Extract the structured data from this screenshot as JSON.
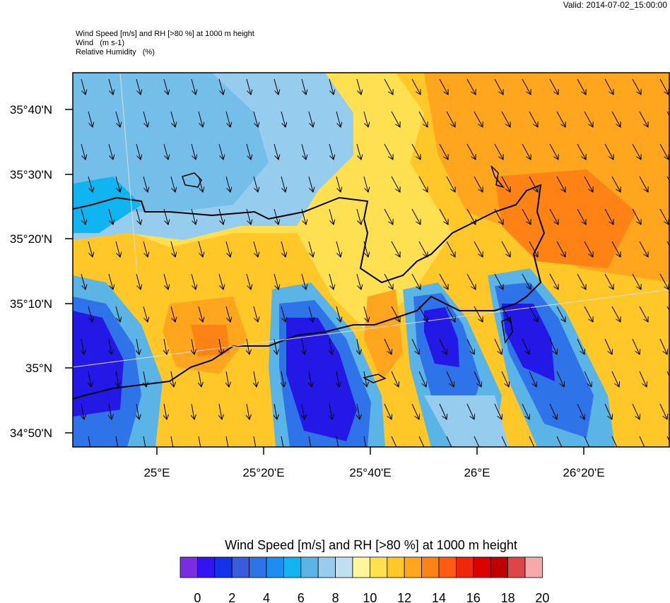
{
  "valid_time": "Valid: 2014-07-02_15:00:00",
  "header": {
    "line1": "Wind Speed [m/s] and RH [>80 %] at 1000 m height",
    "line2": "Wind   (m s-1)",
    "line3": "Relative Humidity   (%)"
  },
  "axes": {
    "lat_labels": [
      "35°40'N",
      "35°30'N",
      "35°20'N",
      "35°10'N",
      "35°N",
      "34°50'N"
    ],
    "lon_labels": [
      "25°E",
      "25°20'E",
      "25°40'E",
      "26°E",
      "26°20'E"
    ]
  },
  "legend": {
    "title": "Wind Speed [m/s] and RH [>80 %] at 1000 m height",
    "tick_labels": [
      "0",
      "2",
      "4",
      "6",
      "8",
      "10",
      "12",
      "14",
      "16",
      "18",
      "20"
    ],
    "colors": [
      "#7a2de0",
      "#3214f0",
      "#1432e8",
      "#3a5ae0",
      "#2e73e8",
      "#1e8cf0",
      "#10b4f0",
      "#5ab4e6",
      "#96cdee",
      "#c0e0f2",
      "#fff59a",
      "#ffe050",
      "#ffc828",
      "#ffa51e",
      "#ff8214",
      "#ff5a14",
      "#f0280a",
      "#dc0000",
      "#c00000",
      "#dc4646",
      "#f5aaaa"
    ]
  },
  "map_colors": {
    "deep_blue": "#2318e6",
    "blue": "#3a5ae0",
    "light_blue": "#5ab4e6",
    "sky": "#96cdee",
    "pale": "#c0e0f2",
    "yellow_pale": "#fff59a",
    "yellow": "#ffe050",
    "gold": "#ffc828",
    "orange": "#ffa51e",
    "dark_orange": "#ff8214"
  }
}
